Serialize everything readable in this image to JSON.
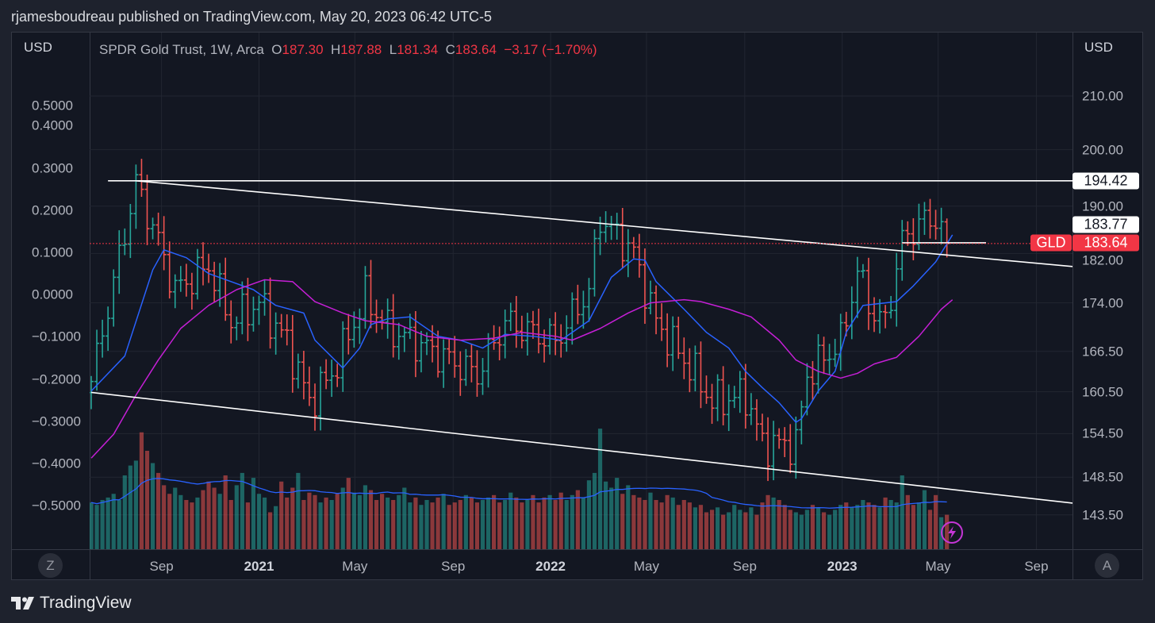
{
  "header": {
    "published_by": "rjamesboudreau published on TradingView.com, May 20, 2023 06:42 UTC-5"
  },
  "legend": {
    "symbol": "SPDR Gold Trust, 1W, Arca",
    "open_label": "O",
    "open": "187.30",
    "high_label": "H",
    "high": "187.88",
    "low_label": "L",
    "low": "181.34",
    "close_label": "C",
    "close": "183.64",
    "change": "−3.17 (−1.70%)"
  },
  "axes": {
    "left_currency": "USD",
    "right_currency": "USD",
    "left_scale_button": "Z",
    "right_scale_button": "A"
  },
  "badges": {
    "ticker": "GLD",
    "last_price": "183.64",
    "line_upper": "194.42",
    "line_mid": "183.77"
  },
  "footer": {
    "brand": "TradingView"
  },
  "colors": {
    "up": "#26a69a",
    "down": "#ef5350",
    "ma_fast": "#2962ff",
    "ma_slow": "#c51fd6",
    "volume_ma": "#2962ff",
    "trendline": "#ffffff",
    "price_line": "#f23645"
  },
  "icons": {
    "alert": "lightning-icon",
    "logo": "tradingview-logo"
  },
  "chart_data": {
    "type": "ohlc",
    "title": "SPDR Gold Trust, 1W, Arca",
    "scale": "log",
    "first_bar_date": "2020-06-05",
    "bar_interval_days": 7,
    "bar_count": 154,
    "last_bar": {
      "open": 187.3,
      "high": 187.88,
      "low": 181.34,
      "close": 183.64
    },
    "close_anchors_week_price": [
      [
        0,
        162
      ],
      [
        8,
        194
      ],
      [
        12,
        184
      ],
      [
        15,
        176
      ],
      [
        21,
        180
      ],
      [
        25,
        171
      ],
      [
        30,
        174
      ],
      [
        35,
        168
      ],
      [
        39,
        159
      ],
      [
        43,
        163
      ],
      [
        49,
        175
      ],
      [
        53,
        170
      ],
      [
        60,
        167
      ],
      [
        69,
        163
      ],
      [
        74,
        171
      ],
      [
        83,
        168
      ],
      [
        89,
        176
      ],
      [
        91,
        188
      ],
      [
        97,
        182
      ],
      [
        101,
        171
      ],
      [
        108,
        163
      ],
      [
        111,
        159
      ],
      [
        117,
        160
      ],
      [
        120,
        153
      ],
      [
        126,
        153
      ],
      [
        128,
        163
      ],
      [
        134,
        168
      ],
      [
        137,
        179
      ],
      [
        140,
        172
      ],
      [
        142,
        171
      ],
      [
        145,
        184
      ],
      [
        148,
        187
      ],
      [
        151,
        188
      ],
      [
        153,
        183.64
      ]
    ],
    "ma_fast_week_price": [
      [
        0,
        160.6
      ],
      [
        6,
        165.8
      ],
      [
        11,
        179.3
      ],
      [
        13,
        182.6
      ],
      [
        17,
        181.3
      ],
      [
        21,
        178.7
      ],
      [
        25,
        177.4
      ],
      [
        29,
        176.1
      ],
      [
        33,
        173.6
      ],
      [
        38,
        172.4
      ],
      [
        40,
        168.2
      ],
      [
        45,
        164.0
      ],
      [
        48,
        167.0
      ],
      [
        50,
        170.6
      ],
      [
        53,
        171.5
      ],
      [
        57,
        171.8
      ],
      [
        62,
        168.8
      ],
      [
        66,
        168.2
      ],
      [
        70,
        167.0
      ],
      [
        74,
        169.1
      ],
      [
        79,
        168.8
      ],
      [
        84,
        168.2
      ],
      [
        89,
        171.2
      ],
      [
        93,
        178.1
      ],
      [
        97,
        181.1
      ],
      [
        99,
        180.9
      ],
      [
        101,
        177.4
      ],
      [
        106,
        173.0
      ],
      [
        110,
        169.4
      ],
      [
        114,
        167.0
      ],
      [
        117,
        163.5
      ],
      [
        120,
        161.1
      ],
      [
        123,
        158.9
      ],
      [
        126,
        156.1
      ],
      [
        127,
        156.6
      ],
      [
        130,
        160.6
      ],
      [
        133,
        163.5
      ],
      [
        135,
        169.4
      ],
      [
        138,
        173.6
      ],
      [
        144,
        174.2
      ],
      [
        147,
        176.7
      ],
      [
        151,
        180.6
      ],
      [
        154,
        185.1
      ]
    ],
    "ma_slow_week_price": [
      [
        0,
        151.1
      ],
      [
        4,
        154.4
      ],
      [
        8,
        160.0
      ],
      [
        12,
        165.2
      ],
      [
        16,
        170.0
      ],
      [
        21,
        173.6
      ],
      [
        26,
        176.1
      ],
      [
        31,
        177.7
      ],
      [
        36,
        177.4
      ],
      [
        40,
        174.2
      ],
      [
        45,
        172.4
      ],
      [
        49,
        171.2
      ],
      [
        55,
        170.6
      ],
      [
        60,
        168.8
      ],
      [
        66,
        168.2
      ],
      [
        72,
        168.5
      ],
      [
        77,
        169.4
      ],
      [
        83,
        168.8
      ],
      [
        86,
        168.2
      ],
      [
        91,
        170.0
      ],
      [
        96,
        172.4
      ],
      [
        100,
        174.0
      ],
      [
        106,
        174.5
      ],
      [
        109,
        174.2
      ],
      [
        114,
        173.0
      ],
      [
        118,
        171.8
      ],
      [
        123,
        168.2
      ],
      [
        126,
        165.2
      ],
      [
        130,
        163.5
      ],
      [
        134,
        162.5
      ],
      [
        137,
        163.2
      ],
      [
        140,
        164.6
      ],
      [
        144,
        165.6
      ],
      [
        148,
        168.8
      ],
      [
        152,
        173.0
      ],
      [
        154,
        174.5
      ]
    ],
    "volume_relative": [
      38,
      36,
      40,
      42,
      45,
      40,
      60,
      68,
      72,
      95,
      80,
      70,
      62,
      52,
      45,
      50,
      44,
      40,
      38,
      42,
      48,
      55,
      50,
      45,
      60,
      40,
      52,
      62,
      38,
      58,
      45,
      42,
      30,
      35,
      55,
      42,
      50,
      62,
      40,
      46,
      44,
      38,
      42,
      40,
      45,
      50,
      58,
      46,
      44,
      52,
      48,
      40,
      45,
      42,
      40,
      44,
      50,
      38,
      42,
      36,
      40,
      38,
      42,
      45,
      36,
      38,
      40,
      44,
      42,
      38,
      40,
      42,
      44,
      38,
      40,
      46,
      42,
      38,
      40,
      44,
      38,
      42,
      44,
      40,
      46,
      40,
      44,
      48,
      42,
      56,
      62,
      98,
      55,
      50,
      58,
      45,
      52,
      44,
      42,
      40,
      46,
      40,
      38,
      44,
      42,
      36,
      40,
      38,
      34,
      36,
      30,
      32,
      34,
      28,
      30,
      36,
      32,
      30,
      34,
      28,
      38,
      44,
      42,
      40,
      36,
      32,
      30,
      28,
      32,
      36,
      34,
      30,
      28,
      32,
      36,
      38,
      34,
      36,
      40,
      38,
      36,
      34,
      42,
      40,
      38,
      60,
      44,
      36,
      38,
      48,
      32,
      44,
      26,
      28
    ],
    "volume_ma_period": 20,
    "trendlines": [
      {
        "name": "upper-horizontal",
        "from": [
          3,
          194.42
        ],
        "to": [
          176,
          194.42
        ]
      },
      {
        "name": "upper-descending",
        "from": [
          8,
          194.42
        ],
        "to": [
          176,
          179.8
        ]
      },
      {
        "name": "lower-descending",
        "from": [
          0,
          160.4
        ],
        "to": [
          176,
          145.0
        ]
      },
      {
        "name": "short-horizontal",
        "from": [
          145,
          183.77
        ],
        "to": [
          160,
          183.77
        ]
      }
    ],
    "right_axis_ticks": [
      "210.00",
      "200.00",
      "190.00",
      "182.00",
      "174.00",
      "166.50",
      "160.50",
      "154.50",
      "148.50",
      "143.50"
    ],
    "left_axis_ticks": [
      "0.5000",
      "0.4000",
      "0.3000",
      "0.2000",
      "0.1000",
      "0.0000",
      "−0.1000",
      "−0.2000",
      "−0.3000",
      "−0.4000",
      "−0.5000"
    ],
    "time_ticks": [
      {
        "label": "Sep",
        "date": "2020-09-01",
        "year": false
      },
      {
        "label": "2021",
        "date": "2021-01-01",
        "year": true
      },
      {
        "label": "May",
        "date": "2021-05-01",
        "year": false
      },
      {
        "label": "Sep",
        "date": "2021-09-01",
        "year": false
      },
      {
        "label": "2022",
        "date": "2022-01-01",
        "year": true
      },
      {
        "label": "May",
        "date": "2022-05-01",
        "year": false
      },
      {
        "label": "Sep",
        "date": "2022-09-01",
        "year": false
      },
      {
        "label": "2023",
        "date": "2023-01-01",
        "year": true
      },
      {
        "label": "May",
        "date": "2023-05-01",
        "year": false
      },
      {
        "label": "Sep",
        "date": "2023-09-01",
        "year": false
      }
    ]
  }
}
